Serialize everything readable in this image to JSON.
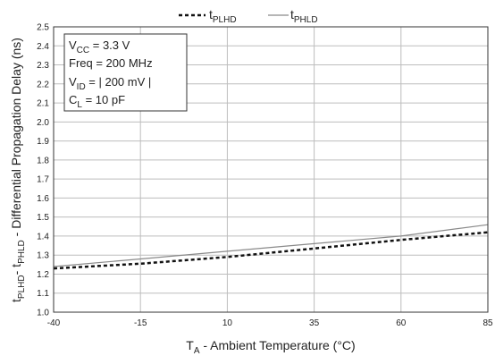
{
  "chart_data": {
    "type": "line",
    "xlabel": {
      "main": "T",
      "sub": "A",
      "rest": " - Ambient Temperature (°C)"
    },
    "ylabel": {
      "a": "t",
      "a_sub": "PLHD",
      "sep": "- t",
      "b_sub": "PHLD",
      "rest": " - Differential Propagation Delay (ns)"
    },
    "xlim": [
      -40,
      85
    ],
    "ylim": [
      1.0,
      2.5
    ],
    "x_ticks": [
      -40,
      -15,
      10,
      35,
      60,
      85
    ],
    "y_ticks": [
      1.0,
      1.1,
      1.2,
      1.3,
      1.4,
      1.5,
      1.6,
      1.7,
      1.8,
      1.9,
      2.0,
      2.1,
      2.2,
      2.3,
      2.4,
      2.5
    ],
    "x_tick_labels": [
      "-40",
      "-15",
      "10",
      "35",
      "60",
      "85"
    ],
    "y_tick_labels": [
      "1.0",
      "1.1",
      "1.2",
      "1.3",
      "1.4",
      "1.5",
      "1.6",
      "1.7",
      "1.8",
      "1.9",
      "2.0",
      "2.1",
      "2.2",
      "2.3",
      "2.4",
      "2.5"
    ],
    "grid": true,
    "legend_position": "top-center",
    "series": [
      {
        "name": "t",
        "name_sub": "PLHD",
        "style": "dashed",
        "color": "#111111",
        "x": [
          -40,
          -15,
          10,
          35,
          60,
          85
        ],
        "y": [
          1.23,
          1.255,
          1.29,
          1.335,
          1.38,
          1.42
        ]
      },
      {
        "name": "t",
        "name_sub": "PHLD",
        "style": "solid",
        "color": "#8a8a8a",
        "x": [
          -40,
          -15,
          10,
          35,
          60,
          85
        ],
        "y": [
          1.24,
          1.28,
          1.32,
          1.36,
          1.4,
          1.46
        ]
      }
    ],
    "annotation": [
      {
        "main": "V",
        "sub": "CC",
        "rest": " = 3.3 V"
      },
      {
        "main": "Freq = 200 MHz",
        "sub": "",
        "rest": ""
      },
      {
        "main": "V",
        "sub": "ID",
        "rest": "  = | 200 mV |"
      },
      {
        "main": "C",
        "sub": "L",
        "rest": "   = 10 pF"
      }
    ]
  }
}
